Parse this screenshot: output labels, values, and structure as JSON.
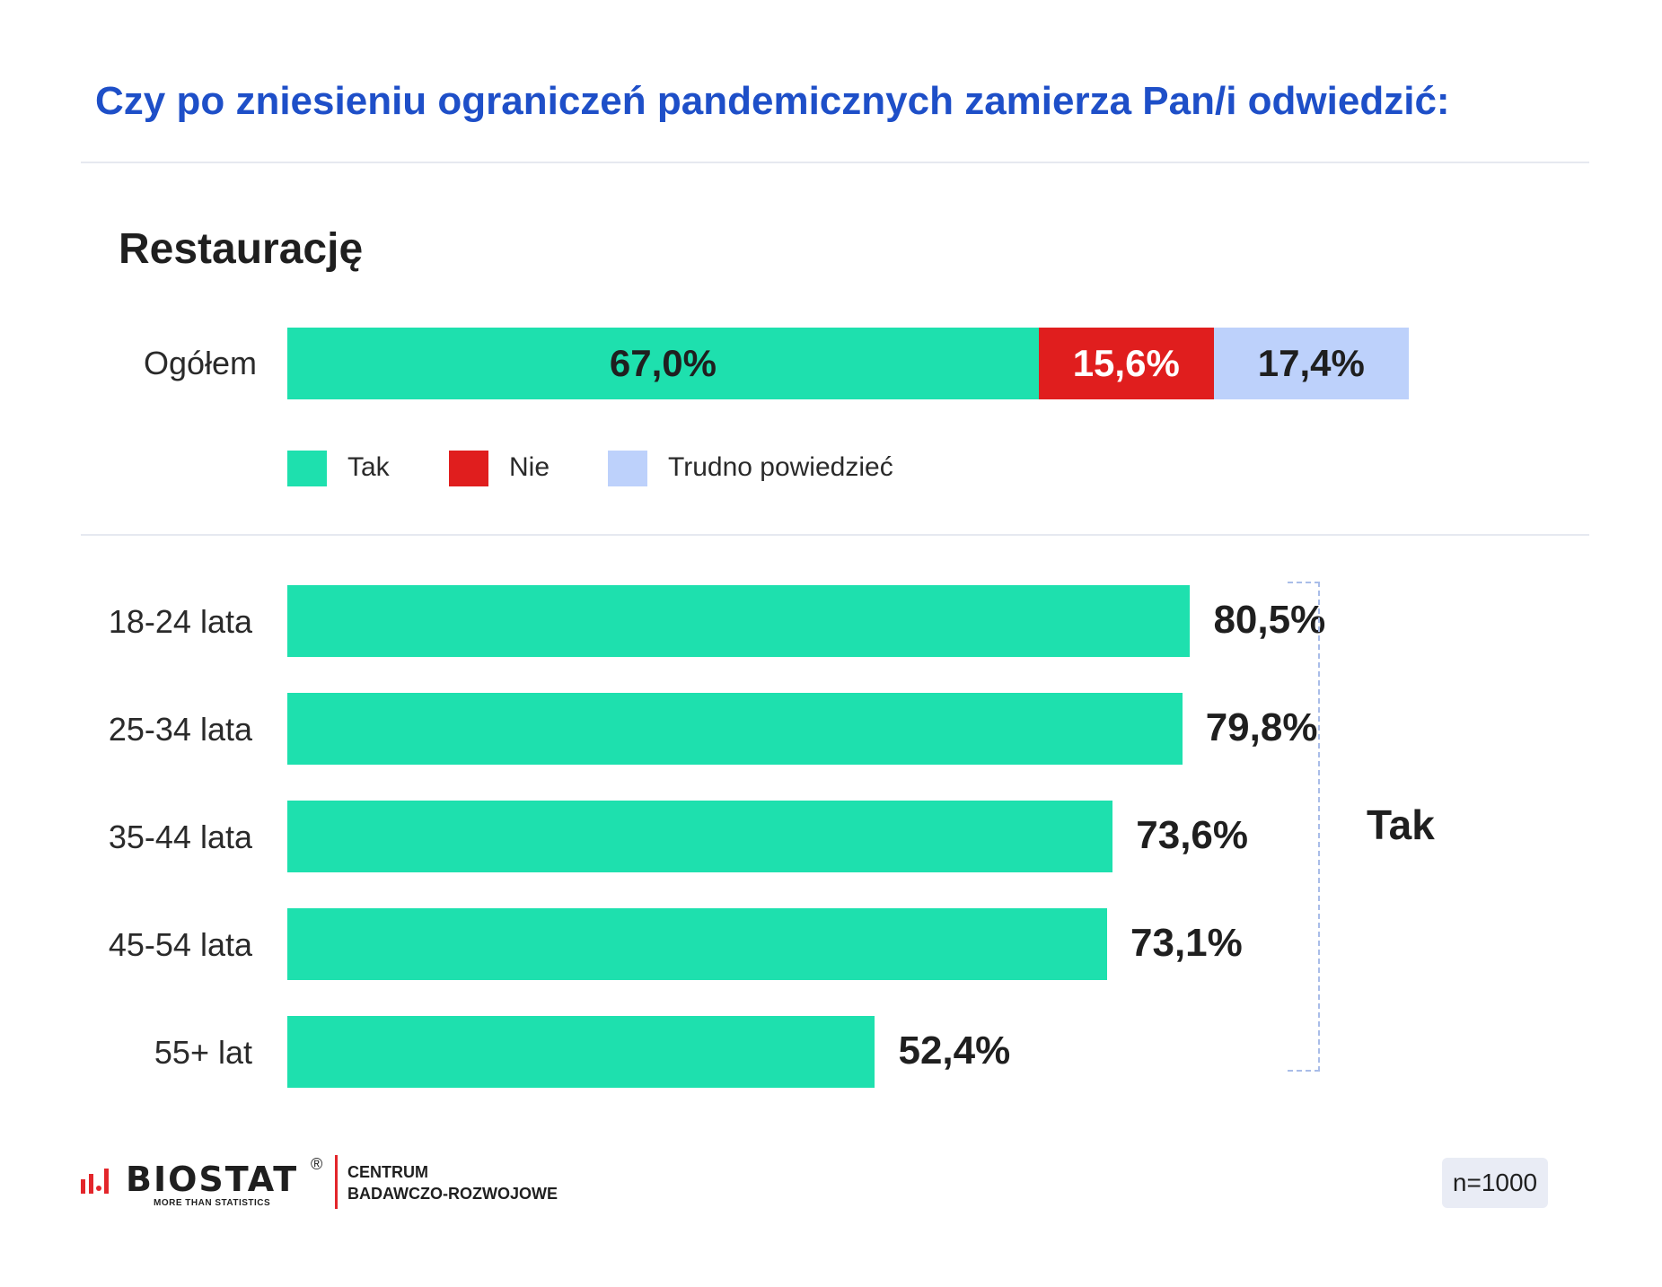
{
  "title": "Czy po zniesieniu ograniczeń pandemicznych zamierza Pan/i odwiedzić:",
  "subtitle": "Restaurację",
  "colors": {
    "tak": "#1ee0ae",
    "nie": "#e01e1e",
    "trudno": "#bdd1fb",
    "title": "#1e4fc8",
    "accent_red": "#e3262b"
  },
  "legend": [
    {
      "label": "Tak",
      "color": "#1ee0ae"
    },
    {
      "label": "Nie",
      "color": "#e01e1e"
    },
    {
      "label": "Trudno powiedzieć",
      "color": "#bdd1fb"
    }
  ],
  "chart_data": [
    {
      "type": "bar",
      "stacked": true,
      "orientation": "horizontal",
      "categories": [
        "Ogółem"
      ],
      "series": [
        {
          "name": "Tak",
          "values": [
            67.0
          ],
          "label": "67,0%"
        },
        {
          "name": "Nie",
          "values": [
            15.6
          ],
          "label": "15,6%"
        },
        {
          "name": "Trudno powiedzieć",
          "values": [
            17.4
          ],
          "label": "17,4%"
        }
      ],
      "xlim": [
        0,
        100
      ]
    },
    {
      "type": "bar",
      "orientation": "horizontal",
      "categories": [
        "18-24 lata",
        "25-34 lata",
        "35-44 lata",
        "45-54 lata",
        "55+ lat"
      ],
      "values": [
        80.5,
        79.8,
        73.6,
        73.1,
        52.4
      ],
      "value_labels": [
        "80,5%",
        "79,8%",
        "73,6%",
        "73,1%",
        "52,4%"
      ],
      "group_label": "Tak",
      "xlim": [
        0,
        100
      ]
    }
  ],
  "footer": {
    "logo_word": "BIOSTAT",
    "logo_registered": "®",
    "logo_tagline": "MORE THAN STATISTICS",
    "centrum_line1": "CENTRUM",
    "centrum_line2": "BADAWCZO-ROZWOJOWE",
    "sample_size": "n=1000"
  }
}
